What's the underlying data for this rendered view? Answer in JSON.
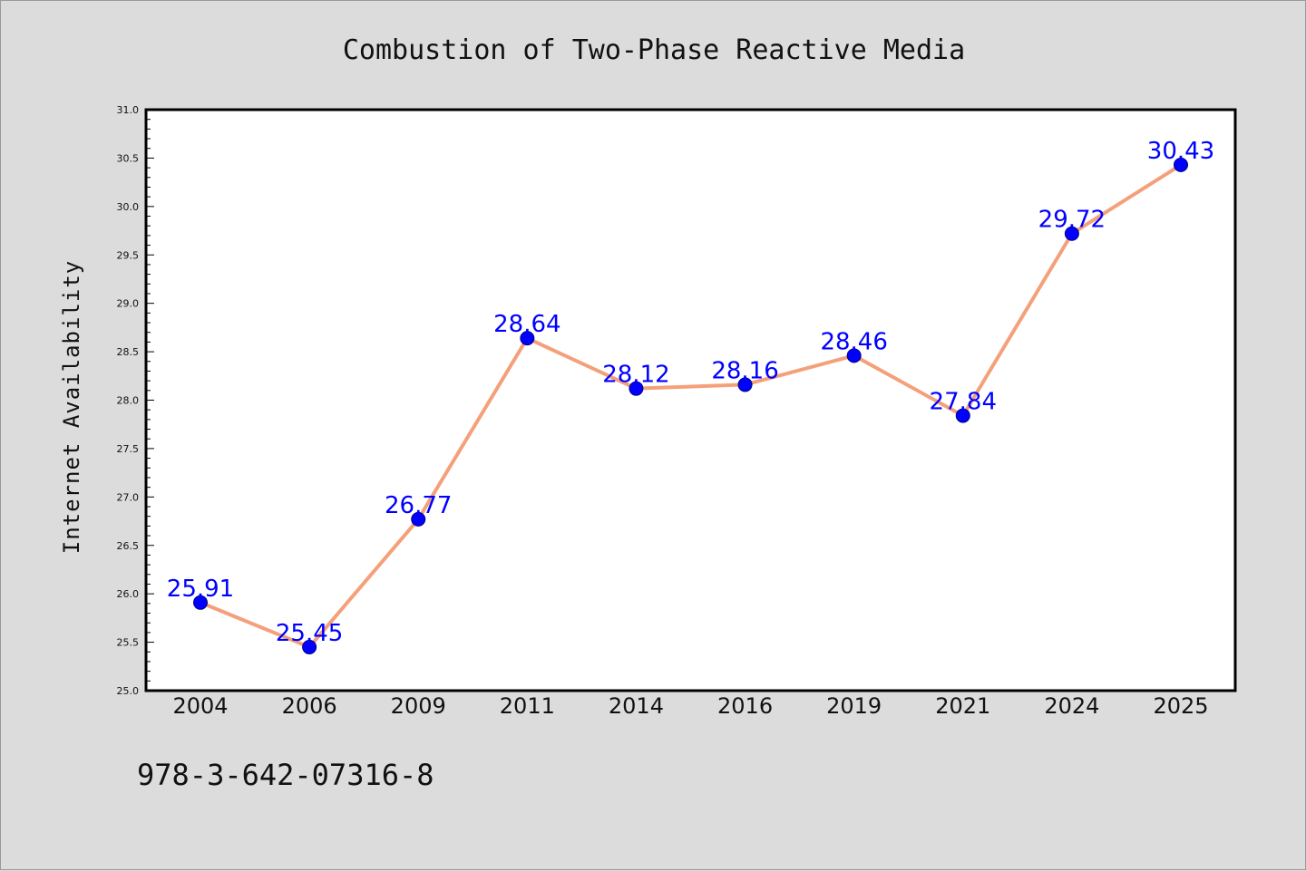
{
  "chart_data": {
    "type": "line",
    "title": "Combustion of Two-Phase Reactive Media",
    "xlabel": "",
    "ylabel": "Internet Availability",
    "categories": [
      "2004",
      "2006",
      "2009",
      "2011",
      "2014",
      "2016",
      "2019",
      "2021",
      "2024",
      "2025"
    ],
    "series": [
      {
        "values": [
          25.91,
          25.45,
          26.77,
          28.64,
          28.12,
          28.16,
          28.46,
          27.84,
          29.72,
          30.43
        ],
        "line_color": "#f4a07a",
        "marker_color": "#0000ff"
      }
    ],
    "data_labels": [
      "25.91",
      "25.45",
      "26.77",
      "28.64",
      "28.12",
      "28.16",
      "28.46",
      "27.84",
      "29.72",
      "30.43"
    ],
    "ylim": [
      25.0,
      31.0
    ],
    "yticks": [
      "25.0",
      "25.5",
      "26.0",
      "26.5",
      "27.0",
      "27.5",
      "28.0",
      "28.5",
      "29.0",
      "29.5",
      "30.0",
      "30.5",
      "31.0"
    ],
    "grid": false,
    "legend": "none"
  },
  "annotation": "978-3-642-07316-8",
  "colors": {
    "figure_background": "#dcdcdc",
    "plot_background": "#ffffff",
    "line": "#f4a07a",
    "marker": "#0000ff",
    "data_label": "#0000ff"
  }
}
